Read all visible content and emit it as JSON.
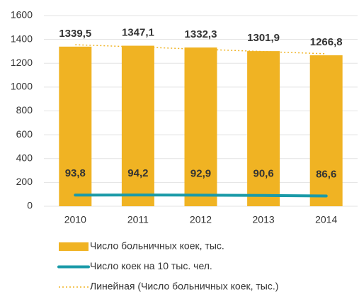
{
  "chart_data": {
    "type": "bar",
    "categories": [
      "2010",
      "2011",
      "2012",
      "2013",
      "2014"
    ],
    "series": [
      {
        "name": "Число больничных коек, тыс.",
        "type": "bar",
        "color": "#f0b323",
        "values": [
          1339.5,
          1347.1,
          1332.3,
          1301.9,
          1266.8
        ],
        "value_labels": [
          "1339,5",
          "1347,1",
          "1332,3",
          "1301,9",
          "1266,8"
        ]
      },
      {
        "name": "Число коек на 10 тыс. чел.",
        "type": "line",
        "color": "#1a9aa8",
        "values": [
          93.8,
          94.2,
          92.9,
          90.6,
          86.6
        ],
        "value_labels": [
          "93,8",
          "94,2",
          "92,9",
          "90,6",
          "86,6"
        ]
      },
      {
        "name": "Линейная (Число больничных коек, тыс.)",
        "type": "trend",
        "color": "#f0b323",
        "values": [
          1355.6,
          1336.6,
          1317.5,
          1298.4,
          1279.4
        ]
      }
    ],
    "ylim": [
      0,
      1600
    ],
    "yticks": [
      0,
      200,
      400,
      600,
      800,
      1000,
      1200,
      1400,
      1600
    ],
    "grid": true
  }
}
